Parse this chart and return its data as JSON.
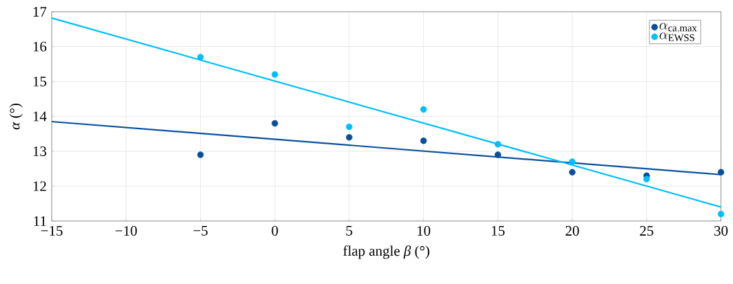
{
  "chart_data": {
    "type": "scatter",
    "xlabel": "flap angle *β* (°)",
    "ylabel": "*α* (°)",
    "xlim": [
      -15,
      30
    ],
    "ylim": [
      11,
      17
    ],
    "xticks": [
      {
        "value": -15,
        "label": "−15"
      },
      {
        "value": -10,
        "label": "−10"
      },
      {
        "value": -5,
        "label": "−5"
      },
      0,
      5,
      10,
      15,
      20,
      25,
      30
    ],
    "yticks": [
      11,
      12,
      13,
      14,
      15,
      16,
      17
    ],
    "grid": true,
    "legend": "top right",
    "series": [
      {
        "name": "\\alpha_{\\mathrm{ca,max}}",
        "marker": "circle",
        "color": "#0a4f9c",
        "x": [
          -5,
          0,
          5,
          10,
          15,
          20,
          25,
          30
        ],
        "values": [
          12.9,
          13.8,
          13.4,
          13.3,
          12.9,
          12.4,
          12.3,
          12.4
        ]
      },
      {
        "name": "\\alpha_{\\mathrm{EWSS}}",
        "marker": "circle",
        "color": "#00bfff",
        "x": [
          -5,
          0,
          5,
          10,
          15,
          20,
          25,
          30
        ],
        "values": [
          15.7,
          15.2,
          13.7,
          14.2,
          13.2,
          12.7,
          12.2,
          11.2
        ]
      },
      {
        "type": "line",
        "marker": "none",
        "color": "#0a4f9c",
        "x": [
          -15,
          30
        ],
        "values": [
          13.85,
          12.33
        ]
      },
      {
        "type": "line",
        "marker": "none",
        "color": "#00bfff",
        "x": [
          -15,
          30
        ],
        "values": [
          16.82,
          11.4
        ]
      }
    ]
  }
}
